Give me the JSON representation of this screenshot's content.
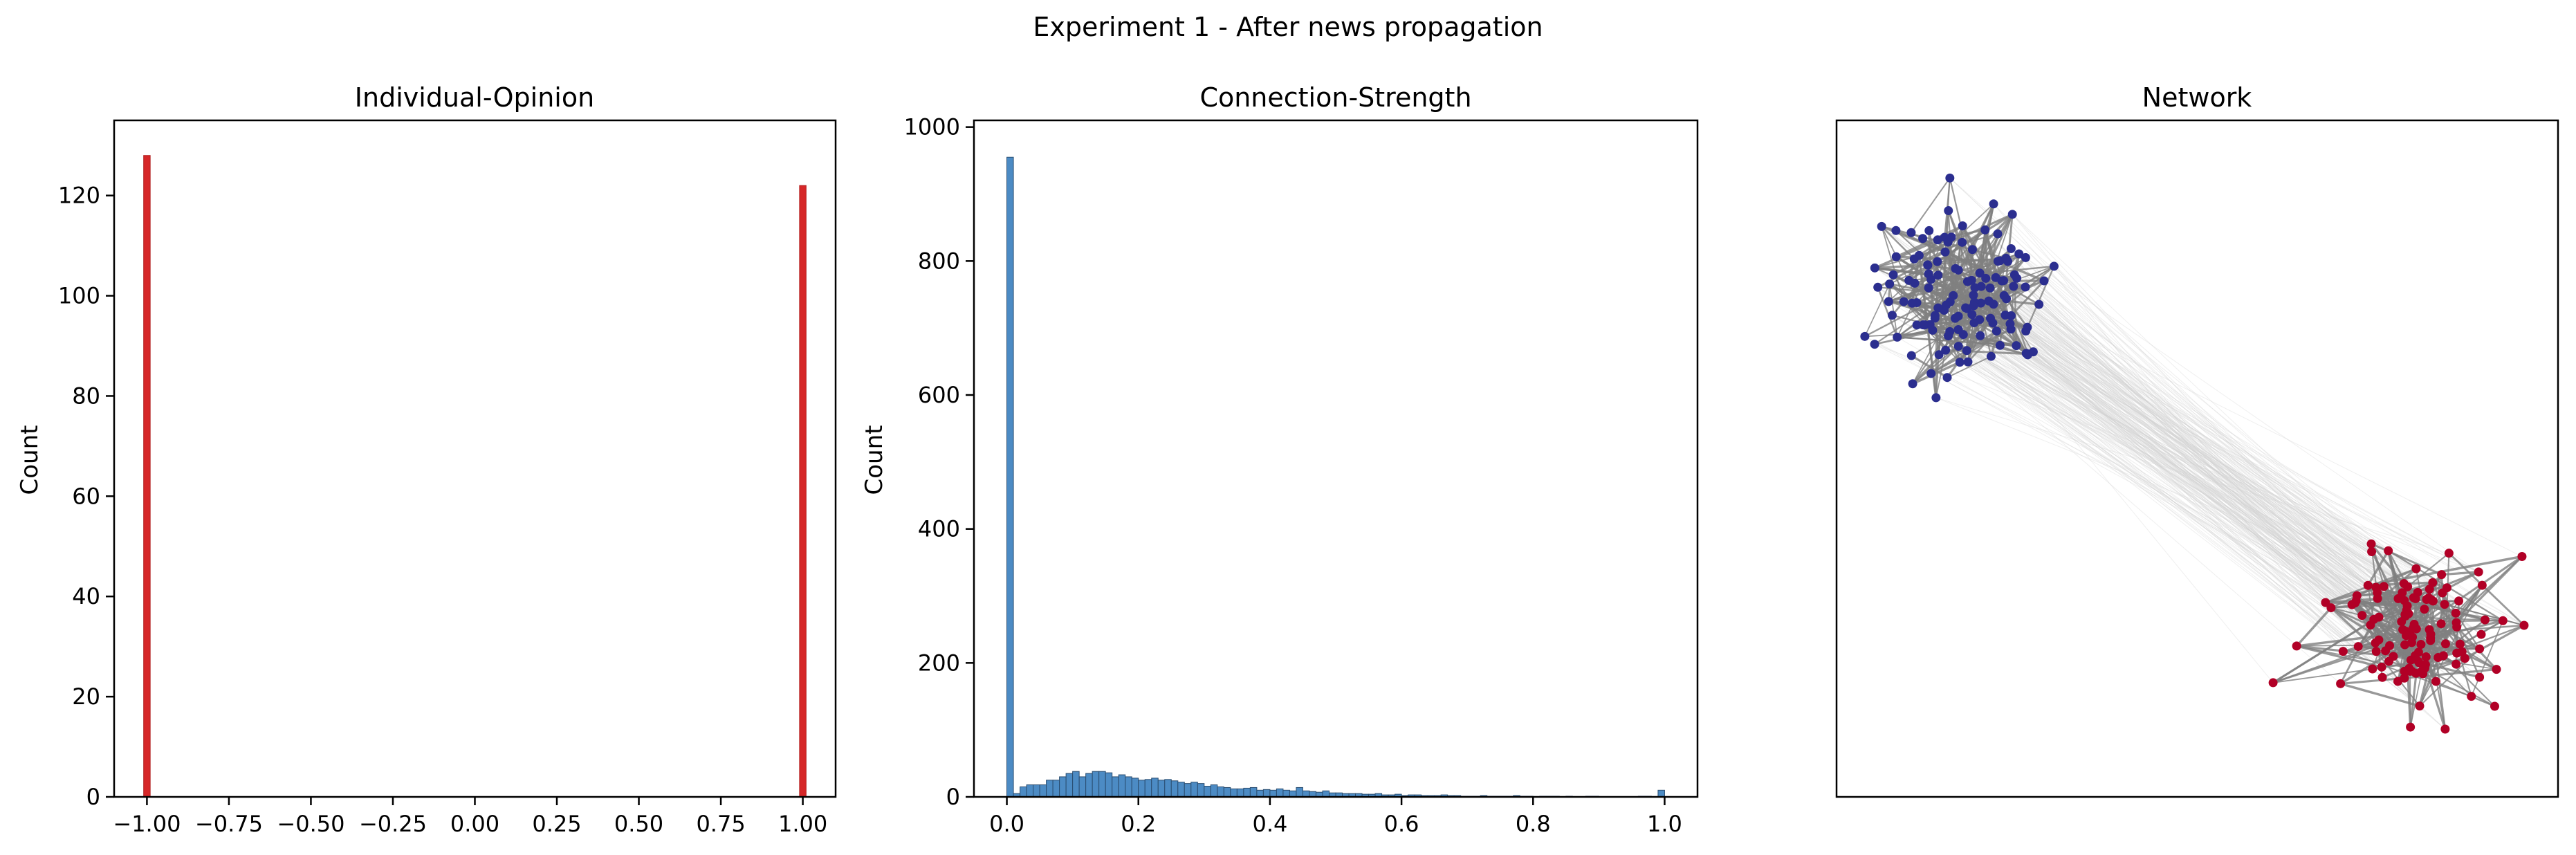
{
  "figure": {
    "suptitle": "Experiment 1 - After news propagation"
  },
  "chart_data": [
    {
      "type": "bar",
      "title": "Individual-Opinion",
      "xlabel": "",
      "ylabel": "Count",
      "xlim": [
        -1.1,
        1.1
      ],
      "ylim": [
        0,
        135
      ],
      "xticks": [
        "-1.00",
        "-0.75",
        "-0.50",
        "-0.25",
        "0.00",
        "0.25",
        "0.50",
        "0.75",
        "1.00"
      ],
      "yticks": [
        "0",
        "20",
        "40",
        "60",
        "80",
        "100",
        "120"
      ],
      "bar_width": 0.02,
      "bars": [
        {
          "x": -1.0,
          "value": 128
        },
        {
          "x": 1.0,
          "value": 122
        }
      ],
      "color": "#d62728",
      "grid": false
    },
    {
      "type": "bar",
      "title": "Connection-Strength",
      "xlabel": "",
      "ylabel": "Count",
      "xlim": [
        -0.05,
        1.05
      ],
      "ylim": [
        0,
        1010
      ],
      "xticks": [
        "0.0",
        "0.2",
        "0.4",
        "0.6",
        "0.8",
        "1.0"
      ],
      "yticks": [
        "0",
        "200",
        "400",
        "600",
        "800",
        "1000"
      ],
      "bin_width": 0.01,
      "bin_start": 0.0,
      "values": [
        955,
        5,
        15,
        18,
        18,
        18,
        25,
        25,
        30,
        35,
        38,
        30,
        35,
        38,
        38,
        36,
        30,
        33,
        30,
        28,
        25,
        26,
        28,
        25,
        26,
        24,
        22,
        20,
        22,
        20,
        16,
        18,
        15,
        14,
        12,
        12,
        13,
        14,
        10,
        11,
        10,
        12,
        10,
        9,
        14,
        9,
        8,
        7,
        9,
        6,
        6,
        5,
        5,
        5,
        4,
        4,
        5,
        3,
        3,
        4,
        2,
        3,
        3,
        2,
        2,
        2,
        3,
        2,
        2,
        1,
        1,
        1,
        2,
        1,
        1,
        1,
        1,
        2,
        1,
        1,
        0,
        1,
        1,
        1,
        0,
        1,
        0,
        0,
        1,
        1,
        0,
        0,
        0,
        0,
        0,
        0,
        1,
        1,
        0,
        10
      ],
      "color": "#4c8bc4",
      "grid": false
    }
  ],
  "network": {
    "title": "Network",
    "node_colors": {
      "cluster_a": "#2b2e8f",
      "cluster_b": "#b10026"
    },
    "edge_color": "#808080",
    "cross_edge_color": "#d0d0d0"
  }
}
